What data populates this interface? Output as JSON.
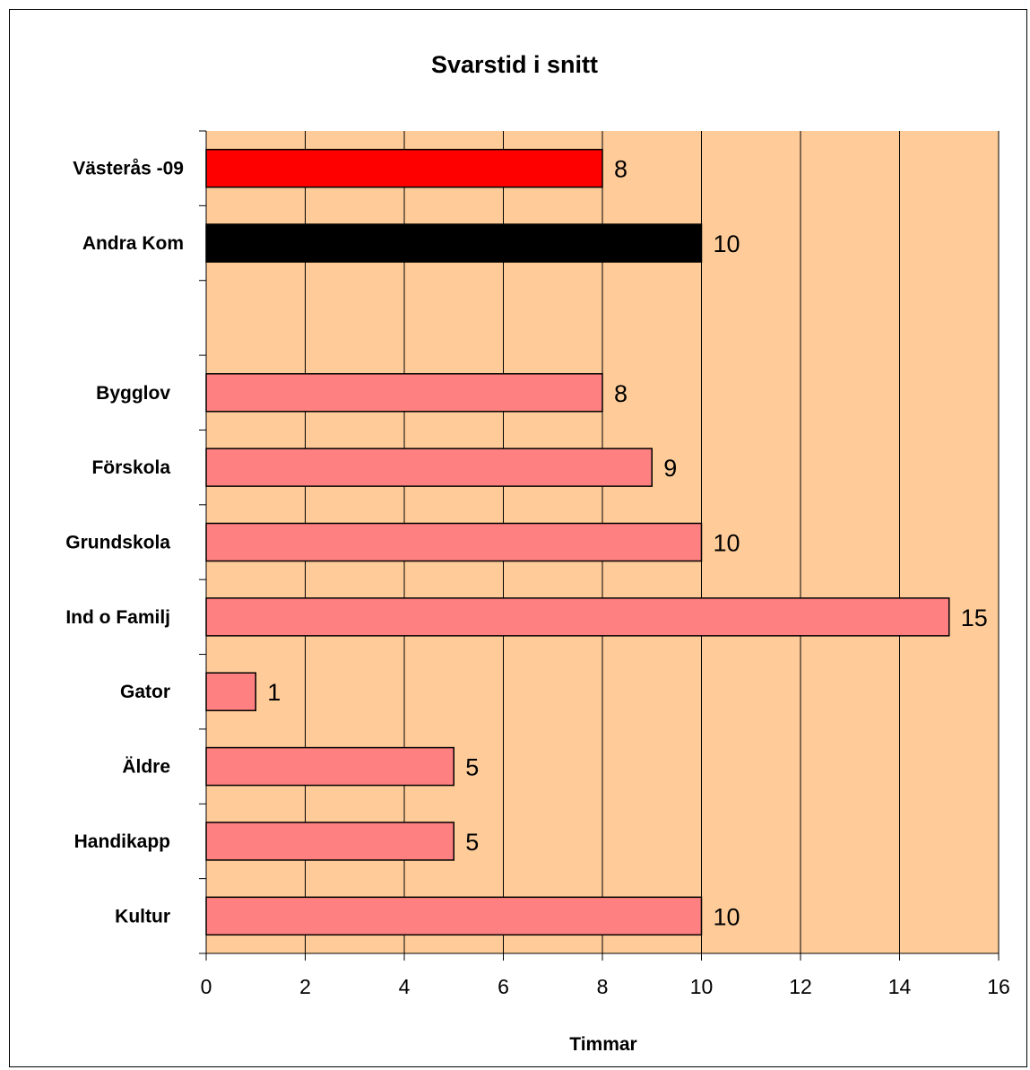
{
  "chart_data": {
    "type": "bar",
    "orientation": "horizontal",
    "title": "Svarstid i snitt",
    "xlabel": "Timmar",
    "ylabel": "",
    "xlim": [
      0,
      16
    ],
    "xticks": [
      "0",
      "2",
      "4",
      "6",
      "8",
      "10",
      "12",
      "14",
      "16"
    ],
    "grid": true,
    "legend": "none",
    "plot_background": "#FFCC99",
    "categories": [
      "Västerås -09",
      "Andra Kom",
      "",
      "Bygglov",
      "Förskola",
      "Grundskola",
      "Ind o Familj",
      "Gator",
      "Äldre",
      "Handikapp",
      "Kultur"
    ],
    "values": [
      8,
      10,
      null,
      8,
      9,
      10,
      15,
      1,
      5,
      5,
      10
    ],
    "value_labels": [
      "8",
      "10",
      "",
      "8",
      "9",
      "10",
      "15",
      "1",
      "5",
      "5",
      "10"
    ],
    "colors": [
      "#FF0000",
      "#000000",
      "",
      "#FF8080",
      "#FF8080",
      "#FF8080",
      "#FF8080",
      "#FF8080",
      "#FF8080",
      "#FF8080",
      "#FF8080"
    ]
  }
}
